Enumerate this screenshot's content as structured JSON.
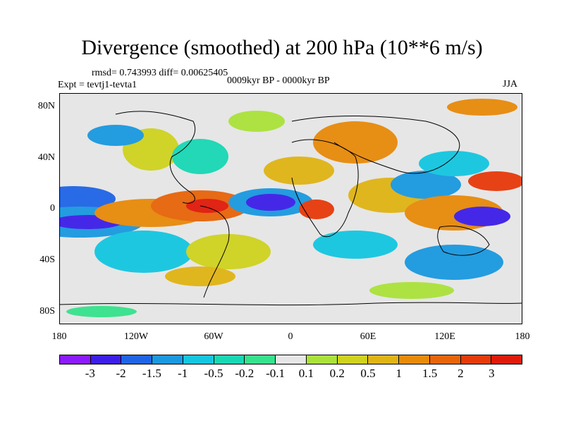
{
  "title": "Divergence (smoothed) at 200 hPa (10**6 m/s)",
  "rmsd_text": "rmsd= 0.743993 diff= 0.00625405",
  "expt_text": "Expt = tevtj1-tevta1",
  "period_text": "0009kyr BP - 0000kyr BP",
  "season_text": "JJA",
  "lat_labels": [
    "80N",
    "40N",
    "0",
    "40S",
    "80S"
  ],
  "lon_labels": [
    "180",
    "120W",
    "60W",
    "0",
    "60E",
    "120E",
    "180"
  ],
  "colorbar": {
    "colors": [
      "#8c1aff",
      "#3d1ee8",
      "#1f64e6",
      "#1a99e0",
      "#14c6e0",
      "#18d8b4",
      "#36e28c",
      "#e6e6e6",
      "#aae23a",
      "#cfd21e",
      "#e0b414",
      "#e88a0a",
      "#e8640a",
      "#e63a0a",
      "#e01a0a"
    ],
    "labels": [
      "-3",
      "-2",
      "-1.5",
      "-1",
      "-0.5",
      "-0.2",
      "-0.1",
      "0.1",
      "0.2",
      "0.5",
      "1",
      "1.5",
      "2",
      "3"
    ]
  }
}
